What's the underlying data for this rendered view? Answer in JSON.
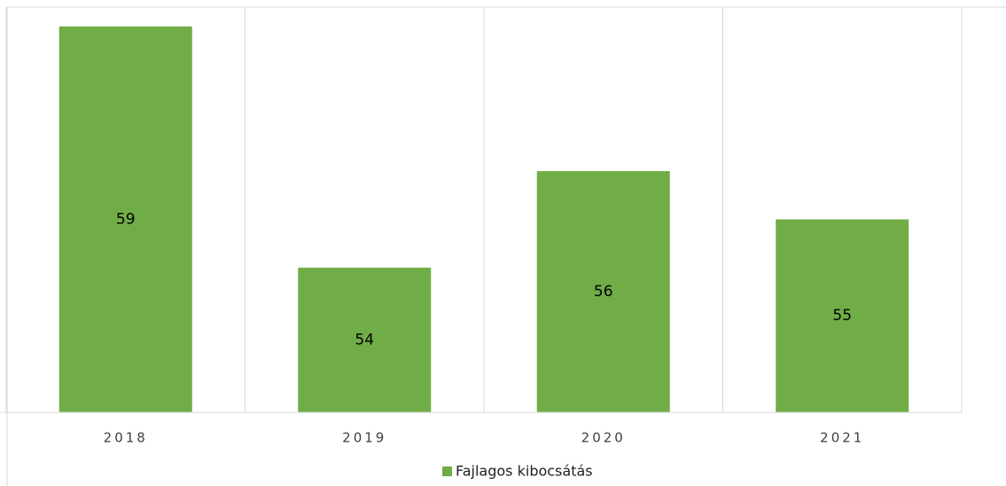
{
  "chart_data": {
    "type": "bar",
    "categories": [
      "2018",
      "2019",
      "2020",
      "2021"
    ],
    "series": [
      {
        "name": "Fajlagos kibocsátás",
        "color": "#70ad47",
        "values": [
          59,
          54,
          56,
          55
        ]
      }
    ],
    "ylim": [
      51,
      59.4
    ],
    "legend": "bottom"
  }
}
